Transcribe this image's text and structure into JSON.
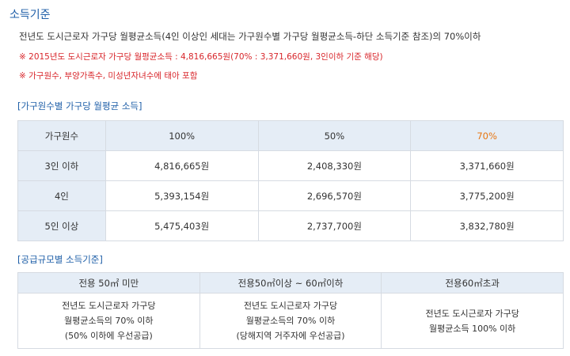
{
  "page_title": "소득기준",
  "intro": "전년도 도시근로자 가구당 월평균소득(4인 이상인 세대는 가구원수별 가구당 월평균소득-하단 소득기준 참조)의 70%이하",
  "notes": [
    "※ 2015년도 도시근로자 가구당 월평균소득 : 4,816,665원(70% : 3,371,660원, 3인이하 기준 해당)",
    "※ 가구원수, 부양가족수, 미성년자녀수에 태아 포함"
  ],
  "accent_color": "#e8750f",
  "income_table": {
    "title": "[가구원수별 가구당 월평균 소득]",
    "headers": [
      "가구원수",
      "100%",
      "50%",
      "70%"
    ],
    "rows": [
      {
        "label": "3인 이하",
        "values": [
          "4,816,665원",
          "2,408,330원",
          "3,371,660원"
        ]
      },
      {
        "label": "4인",
        "values": [
          "5,393,154원",
          "2,696,570원",
          "3,775,200원"
        ]
      },
      {
        "label": "5인 이상",
        "values": [
          "5,475,403원",
          "2,737,700원",
          "3,832,780원"
        ]
      }
    ]
  },
  "supply_table": {
    "title": "[공급규모별 소득기준]",
    "headers": [
      "전용 50㎡ 미만",
      "전용50㎡이상 ~ 60㎡이하",
      "전용60㎡초과"
    ],
    "cells": [
      [
        "전년도 도시근로자 가구당",
        "월평균소득의 70% 이하",
        "(50% 이하에 우선공급)"
      ],
      [
        "전년도 도시근로자 가구당",
        "월평균소득의 70% 이하",
        "(당해지역 거주자에 우선공급)"
      ],
      [
        "전년도 도시근로자 가구당",
        "월평균소득 100% 이하"
      ]
    ]
  }
}
